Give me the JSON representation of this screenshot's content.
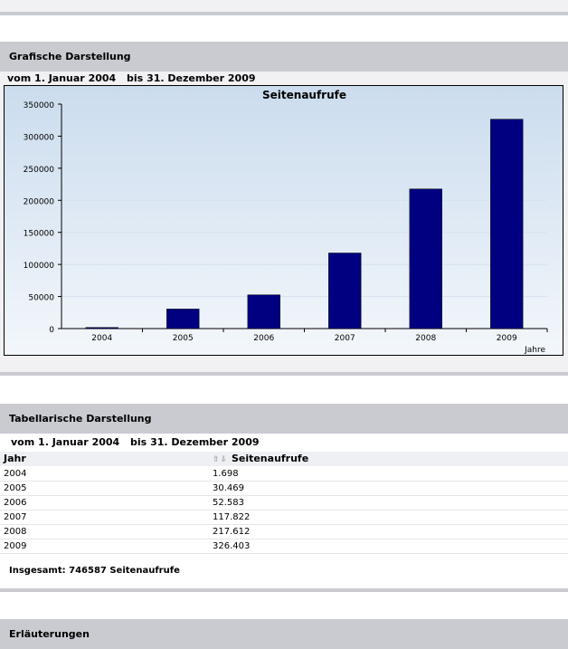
{
  "grafik": {
    "title": "Grafische Darstellung",
    "range": {
      "prefix": "vom",
      "from": "1. Januar 2004",
      "mid": "bis",
      "to": "31. Dezember 2009"
    }
  },
  "chart_data": {
    "type": "bar",
    "title": "Seitenaufrufe",
    "xlabel": "Jahre",
    "ylabel": "",
    "categories": [
      "2004",
      "2005",
      "2006",
      "2007",
      "2008",
      "2009"
    ],
    "values": [
      1698,
      30469,
      52583,
      117822,
      217612,
      326403
    ],
    "ylim": [
      0,
      350000
    ],
    "yticks": [
      0,
      50000,
      100000,
      150000,
      200000,
      250000,
      300000,
      350000
    ],
    "grid": true,
    "bar_color": "#000080"
  },
  "tabelle": {
    "title": "Tabellarische Darstellung",
    "range": {
      "prefix": "vom",
      "from": "1. Januar 2004",
      "mid": "bis",
      "to": "31. Dezember 2009"
    },
    "col_year": "Jahr",
    "col_views": "Seitenaufrufe",
    "rows": [
      {
        "year": "2004",
        "views": "1.698"
      },
      {
        "year": "2005",
        "views": "30.469"
      },
      {
        "year": "2006",
        "views": "52.583"
      },
      {
        "year": "2007",
        "views": "117.822"
      },
      {
        "year": "2008",
        "views": "217.612"
      },
      {
        "year": "2009",
        "views": "326.403"
      }
    ],
    "total_label": "Insgesamt:",
    "total_value": "746587",
    "total_unit": "Seitenaufrufe"
  },
  "erl": {
    "title": "Erläuterungen"
  }
}
